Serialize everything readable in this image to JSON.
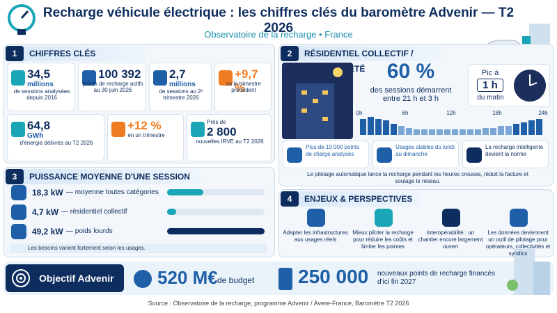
{
  "header": {
    "title": "Recharge véhicule électrique : les chiffres clés du baromètre Advenir — T2 2026",
    "subtitle": "Observatoire de la recharge • France"
  },
  "key_figures": {
    "number": "1",
    "title": "CHIFFRES CLÉS",
    "items": [
      {
        "value": "34,5",
        "unit": "millions",
        "desc": "de sessions analysées depuis 2016"
      },
      {
        "value": "100 392",
        "desc": "points de recharge actifs au 30 juin 2026"
      },
      {
        "value": "2,7",
        "unit": "millions",
        "desc": "de sessions au 2ᵉ trimestre 2026"
      },
      {
        "value": "+9,7 %",
        "desc": "vs le trimestre précédent"
      },
      {
        "value": "64,8",
        "unit": "GWh",
        "desc": "d'énergie délivrés au T2 2026"
      },
      {
        "value": "+12 %",
        "desc": "en un trimestre"
      },
      {
        "prefix": "Près de",
        "value": "2 800",
        "desc": "nouvelles IRVE au T2 2026"
      }
    ]
  },
  "residential": {
    "number": "2",
    "title": "RÉSIDENTIEL COLLECTIF / COPROPRIÉTÉ",
    "share": "60 %",
    "share_text": "des sessions démarrent entre 21 h et 3 h",
    "peak_prefix": "Pic à",
    "peak": "1 h",
    "peak_suffix": "du matin",
    "hours": {
      "labels": [
        "0h",
        "6h",
        "12h",
        "18h",
        "24h"
      ],
      "values": [
        9,
        10,
        9,
        8,
        6,
        5,
        4,
        3,
        3,
        3,
        3,
        3,
        3,
        3,
        3,
        3,
        4,
        4,
        5,
        5,
        6,
        7,
        8,
        9
      ]
    },
    "cards": [
      "Plus de 10 000 points de charge analysés",
      "Usages stables du lundi au dimanche",
      "La recharge intelligente devient la norme"
    ],
    "note": "Le pilotage automatique lance la recharge pendant les heures creuses, réduit la facture et soulage le réseau."
  },
  "power": {
    "number": "3",
    "title": "PUISSANCE MOYENNE D'UNE SESSION",
    "items": [
      {
        "value": 18.3,
        "label": "18,3 kW",
        "desc": "— moyenne toutes catégories"
      },
      {
        "value": 4.7,
        "label": "4,7 kW",
        "desc": "— résidentiel collectif"
      },
      {
        "value": 49.2,
        "label": "49,2 kW",
        "desc": "— poids lourds"
      }
    ],
    "note": "Les besoins varient fortement selon les usages."
  },
  "outlook": {
    "number": "4",
    "title": "ENJEUX & PERSPECTIVES",
    "items": [
      "Adapter les infrastructures aux usages réels",
      "Mieux piloter la recharge pour réduire les coûts et limiter les pointes",
      "Interopérabilité : un chantier encore largement ouvert",
      "Les données deviennent un outil de pilotage pour opérateurs, collectivités et syndics"
    ]
  },
  "objective": {
    "title": "Objectif Advenir",
    "budget": "520 M€",
    "budget_text": "de budget",
    "points": "250 000",
    "points_text": "nouveaux points de recharge financés d'ici fin 2027"
  },
  "source": "Source : Observatoire de la recharge, programme Advenir / Avere-France, Baromètre T2 2026"
}
